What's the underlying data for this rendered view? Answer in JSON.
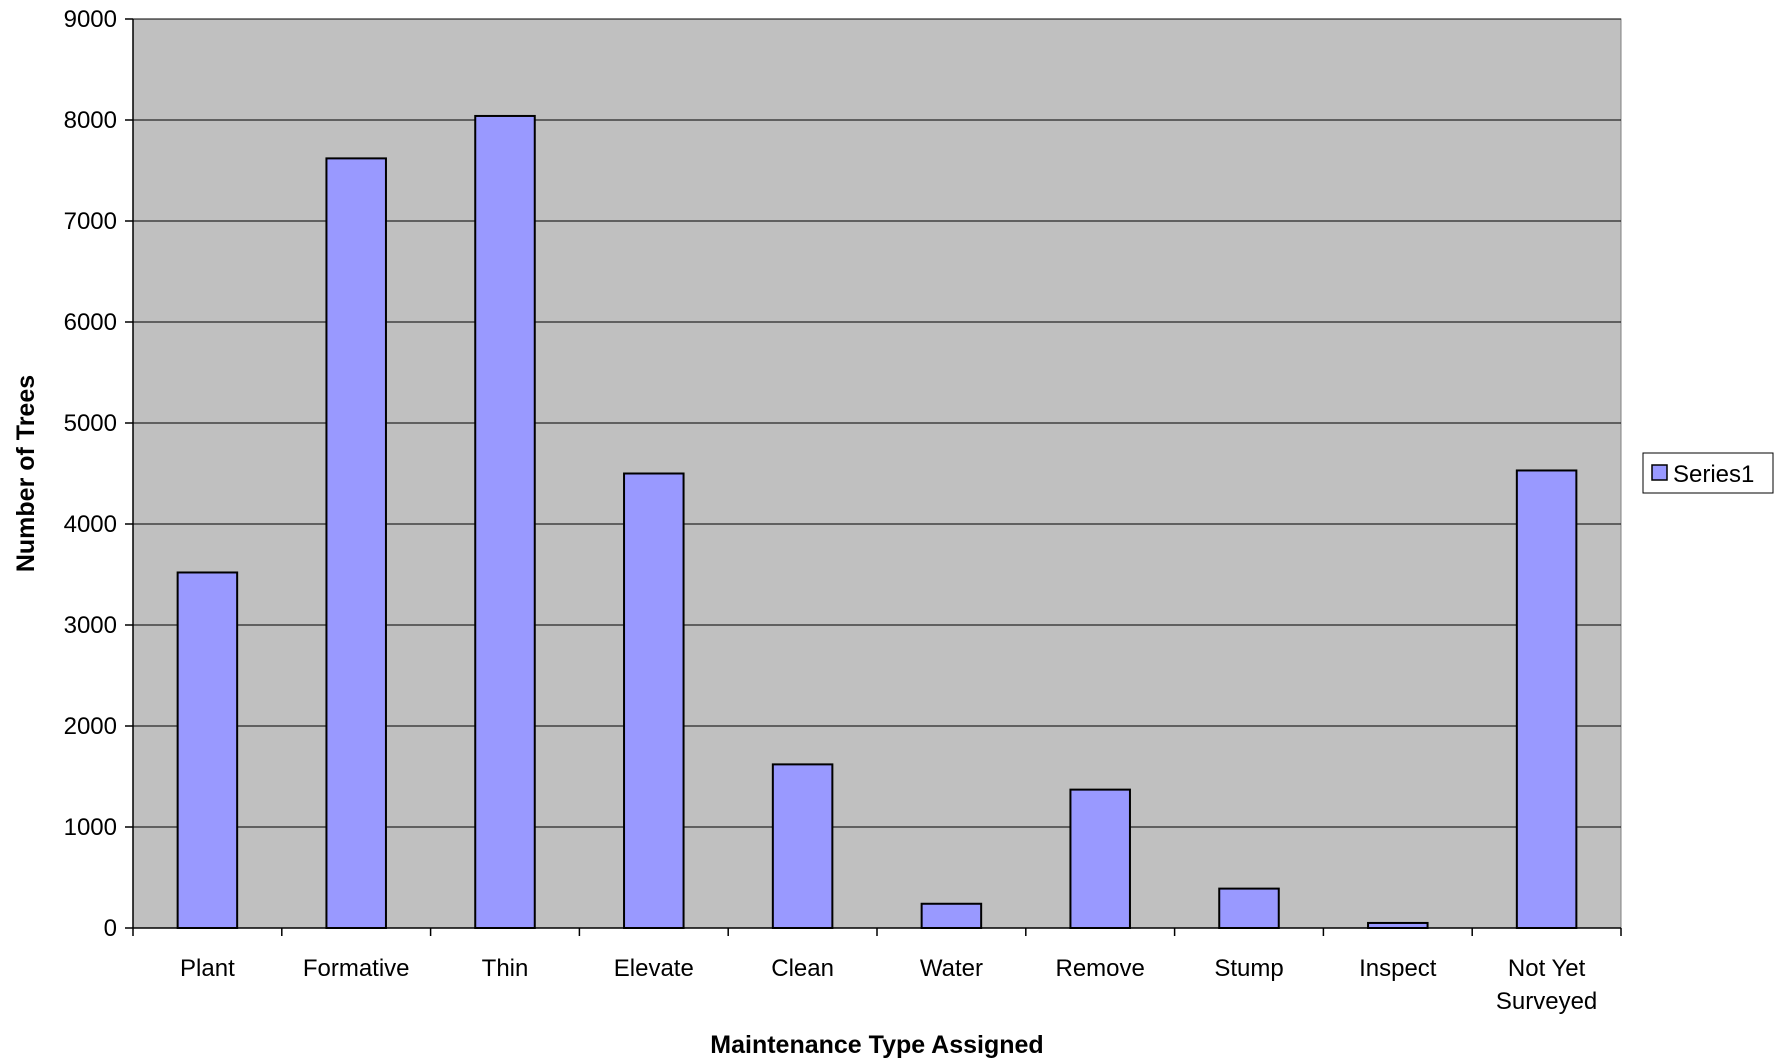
{
  "chart_data": {
    "type": "bar",
    "title": "",
    "xlabel": "Maintenance Type Assigned",
    "ylabel": "Number of Trees",
    "categories": [
      "Plant",
      "Formative",
      "Thin",
      "Elevate",
      "Clean",
      "Water",
      "Remove",
      "Stump",
      "Inspect",
      "Not Yet Surveyed"
    ],
    "series": [
      {
        "name": "Series1",
        "values": [
          3520,
          7620,
          8040,
          4500,
          1620,
          240,
          1370,
          390,
          50,
          4530
        ]
      }
    ],
    "ylim": [
      0,
      9000
    ],
    "yticks": [
      0,
      1000,
      2000,
      3000,
      4000,
      5000,
      6000,
      7000,
      8000,
      9000
    ],
    "grid": true,
    "legend_position": "right",
    "colors": {
      "plot_background": "#c0c0c0",
      "bar_fill": "#9999ff",
      "bar_stroke": "#000000",
      "gridline": "#000000"
    }
  }
}
